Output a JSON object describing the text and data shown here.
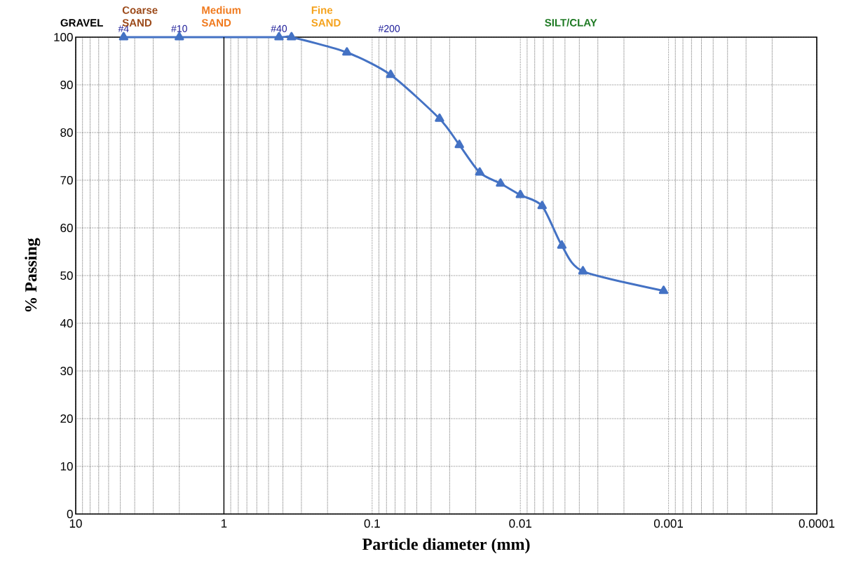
{
  "chart_data": {
    "type": "line",
    "xlabel": "Particle diameter (mm)",
    "ylabel": "% Passing",
    "x": [
      4.75,
      2.0,
      0.425,
      0.35,
      0.148,
      0.075,
      0.0351,
      0.0258,
      0.0188,
      0.0136,
      0.01,
      0.00713,
      0.00525,
      0.00378,
      0.00108
    ],
    "series": [
      {
        "color": "#4472c4",
        "values": [
          100,
          100,
          100,
          100,
          96.8,
          92.1,
          82.9,
          77.4,
          71.6,
          69.3,
          66.9,
          64.6,
          56.3,
          50.9,
          46.8
        ]
      }
    ],
    "log": "x",
    "xlim": [
      10,
      0.0001
    ],
    "xticks": [
      {
        "value": 10,
        "label": "10"
      },
      {
        "value": 1,
        "label": "1"
      },
      {
        "value": 0.1,
        "label": "0.1"
      },
      {
        "value": 0.01,
        "label": "0.01"
      },
      {
        "value": 0.001,
        "label": "0.001"
      },
      {
        "value": 0.0001,
        "label": "0.0001"
      }
    ],
    "ylim": [
      0,
      100
    ],
    "yticks": [
      0,
      10,
      20,
      30,
      40,
      50,
      60,
      70,
      80,
      90,
      100
    ],
    "grid": true,
    "marker": "triangle",
    "line_style": "solid",
    "ref_lines": [
      {
        "axis": "x",
        "value": 1,
        "color": "#000000"
      }
    ],
    "annotations": [
      {
        "text": "#4",
        "x": 4.75,
        "y": 100
      },
      {
        "text": "#10",
        "x": 2.0,
        "y": 100
      },
      {
        "text": "#40",
        "x": 0.425,
        "y": 100
      },
      "#200",
      "GRAVEL",
      "Coarse SAND",
      "Medium SAND",
      "Fine SAND",
      "SILT/CLAY"
    ]
  }
}
